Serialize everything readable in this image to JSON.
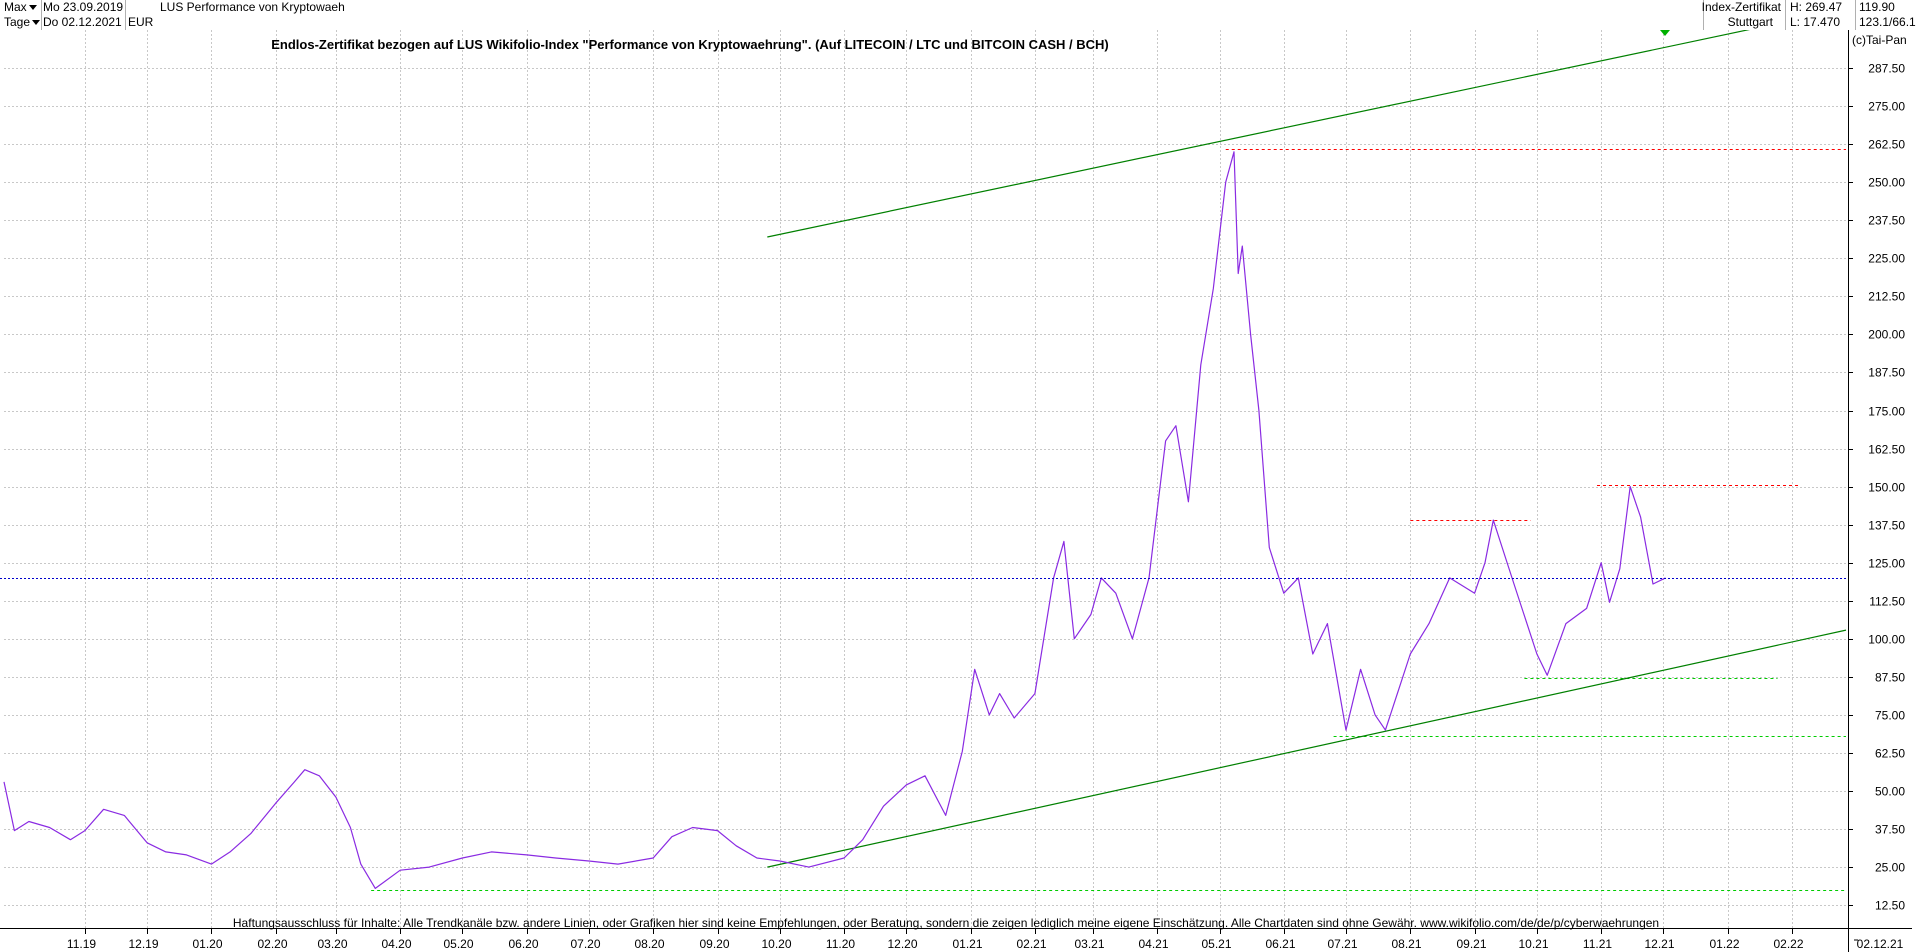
{
  "header": {
    "range_label": "Max",
    "period_label": "Tage",
    "date_from": "Mo 23.09.2019",
    "date_to": "Do 02.12.2021",
    "currency": "EUR",
    "instrument_name": "LUS Performance von Kryptowaeh",
    "instrument_type": "Index-Zertifikat",
    "exchange": "Stuttgart",
    "high_text": "H: 269.47",
    "low_text": "L: 17.470",
    "last_price": "119.90",
    "change_text": "123.1/66.1"
  },
  "chart_data": {
    "type": "line",
    "title": "Endlos-Zertifikat bezogen auf LUS Wikifolio-Index \"Performance von Kryptowaehrung\". (Auf LITECOIN / LTC und BITCOIN CASH / BCH)",
    "copyright": "(c)Tai-Pan",
    "disclaimer": "Haftungsausschluss für Inhalte: Alle Trendkanäle bzw. andere Linien, oder Grafiken hier sind keine Empfehlungen, oder Beratung, sondern die zeigen lediglich meine eigene Einschätzung. Alle Chartdaten sind ohne Gewähr.  www.wikifolio.com/de/de/p/cyberwaehrungen",
    "x_tick_labels": [
      "11.19",
      "12.19",
      "01.20",
      "02.20",
      "03.20",
      "04.20",
      "05.20",
      "06.20",
      "07.20",
      "08.20",
      "09.20",
      "10.20",
      "11.20",
      "12.20",
      "01.21",
      "02.21",
      "03.21",
      "04.21",
      "05.21",
      "06.21",
      "07.21",
      "08.21",
      "09.21",
      "10.21",
      "11.21",
      "12.21",
      "01.22",
      "02.22",
      "02.12.21"
    ],
    "y_ticks": [
      12.5,
      25,
      37.5,
      50,
      62.5,
      75,
      87.5,
      100,
      112.5,
      125,
      137.5,
      150,
      162.5,
      175,
      187.5,
      200,
      212.5,
      225,
      237.5,
      250,
      262.5,
      275,
      287.5
    ],
    "y_tick_labels": [
      "12.50",
      "25.00",
      "37.50",
      "50.00",
      "62.50",
      "75.00",
      "87.50",
      "100.00",
      "112.50",
      "125.00",
      "137.50",
      "150.00",
      "162.50",
      "175.00",
      "187.50",
      "200.00",
      "212.50",
      "225.00",
      "237.50",
      "250.00",
      "262.50",
      "275.00",
      "287.50"
    ],
    "ylim": [
      5,
      300
    ],
    "xlim": [
      "2019-09-23",
      "2022-02-28"
    ],
    "current_value": 119.9,
    "current_value_label": "119.90",
    "series": [
      {
        "color": "#8a2be2",
        "x": [
          "2019-09-23",
          "2019-09-28",
          "2019-10-05",
          "2019-10-15",
          "2019-10-25",
          "2019-11-01",
          "2019-11-10",
          "2019-11-20",
          "2019-12-01",
          "2019-12-10",
          "2019-12-20",
          "2020-01-01",
          "2020-01-10",
          "2020-01-20",
          "2020-02-01",
          "2020-02-10",
          "2020-02-15",
          "2020-02-22",
          "2020-03-01",
          "2020-03-08",
          "2020-03-13",
          "2020-03-20",
          "2020-04-01",
          "2020-04-15",
          "2020-05-01",
          "2020-05-15",
          "2020-06-01",
          "2020-06-15",
          "2020-07-01",
          "2020-07-15",
          "2020-08-01",
          "2020-08-10",
          "2020-08-20",
          "2020-09-01",
          "2020-09-10",
          "2020-09-20",
          "2020-10-01",
          "2020-10-15",
          "2020-11-01",
          "2020-11-10",
          "2020-11-20",
          "2020-12-01",
          "2020-12-10",
          "2020-12-20",
          "2020-12-28",
          "2021-01-03",
          "2021-01-10",
          "2021-01-15",
          "2021-01-22",
          "2021-02-01",
          "2021-02-10",
          "2021-02-15",
          "2021-02-20",
          "2021-02-28",
          "2021-03-05",
          "2021-03-12",
          "2021-03-20",
          "2021-03-28",
          "2021-04-05",
          "2021-04-10",
          "2021-04-16",
          "2021-04-22",
          "2021-04-28",
          "2021-05-04",
          "2021-05-08",
          "2021-05-10",
          "2021-05-12",
          "2021-05-16",
          "2021-05-20",
          "2021-05-25",
          "2021-06-01",
          "2021-06-08",
          "2021-06-15",
          "2021-06-22",
          "2021-07-01",
          "2021-07-08",
          "2021-07-15",
          "2021-07-20",
          "2021-08-01",
          "2021-08-10",
          "2021-08-20",
          "2021-09-01",
          "2021-09-06",
          "2021-09-10",
          "2021-09-20",
          "2021-10-01",
          "2021-10-06",
          "2021-10-15",
          "2021-10-25",
          "2021-11-01",
          "2021-11-05",
          "2021-11-10",
          "2021-11-15",
          "2021-11-20",
          "2021-11-26",
          "2021-12-02"
        ],
        "values": [
          53,
          37,
          40,
          38,
          34,
          37,
          44,
          42,
          33,
          30,
          29,
          26,
          30,
          36,
          46,
          53,
          57,
          55,
          48,
          38,
          26,
          18,
          24,
          25,
          28,
          30,
          29,
          28,
          27,
          26,
          28,
          35,
          38,
          37,
          32,
          28,
          27,
          25,
          28,
          34,
          45,
          52,
          55,
          42,
          63,
          90,
          75,
          82,
          74,
          82,
          120,
          132,
          100,
          108,
          120,
          115,
          100,
          120,
          165,
          170,
          145,
          190,
          215,
          250,
          260,
          220,
          229,
          200,
          175,
          130,
          115,
          120,
          95,
          105,
          70,
          90,
          75,
          70,
          95,
          105,
          120,
          115,
          125,
          139,
          118,
          95,
          88,
          105,
          110,
          125,
          112,
          123,
          150,
          140,
          118,
          120
        ]
      }
    ],
    "trendlines": [
      {
        "from": [
          "2020-09-25",
          232
        ],
        "to": [
          "2022-02-28",
          307
        ],
        "color": "#008000",
        "style": "solid"
      },
      {
        "from": [
          "2020-09-25",
          25
        ],
        "to": [
          "2022-02-28",
          103
        ],
        "color": "#008000",
        "style": "solid"
      }
    ],
    "levels": [
      {
        "value": 261,
        "from": "2021-05-04",
        "to": "2022-02-28",
        "color": "#ff0000"
      },
      {
        "value": 139,
        "from": "2021-08-01",
        "to": "2021-09-28",
        "color": "#ff0000"
      },
      {
        "value": 150.5,
        "from": "2021-10-30",
        "to": "2022-02-05",
        "color": "#ff0000"
      },
      {
        "value": 87,
        "from": "2021-09-25",
        "to": "2022-01-25",
        "color": "#00cc00"
      },
      {
        "value": 68,
        "from": "2021-06-25",
        "to": "2022-02-28",
        "color": "#00cc00"
      },
      {
        "value": 17.5,
        "from": "2020-03-18",
        "to": "2022-02-28",
        "color": "#00cc00"
      }
    ]
  }
}
